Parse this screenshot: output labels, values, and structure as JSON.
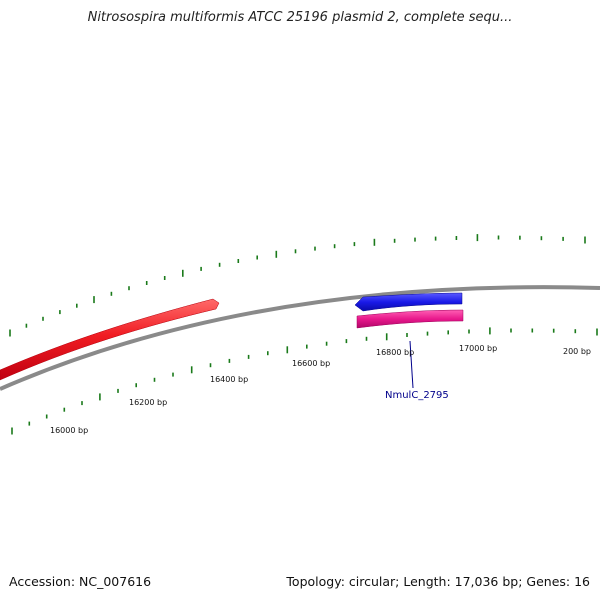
{
  "title": "Nitrosospira multiformis ATCC 25196 plasmid 2, complete sequ...",
  "footer": {
    "accession": "Accession: NC_007616",
    "summary": "Topology: circular; Length: 17,036 bp; Genes: 16"
  },
  "map": {
    "backbone_color": "#8a8a8a",
    "tick_color": "#1a7a1a",
    "position_labels": [
      {
        "name": "tick-label-16000",
        "text": "16000 bp"
      },
      {
        "name": "tick-label-16200",
        "text": "16200 bp"
      },
      {
        "name": "tick-label-16400",
        "text": "16400 bp"
      },
      {
        "name": "tick-label-16600",
        "text": "16600 bp"
      },
      {
        "name": "tick-label-16800",
        "text": "16800 bp"
      },
      {
        "name": "tick-label-17000",
        "text": "17000 bp"
      },
      {
        "name": "tick-label-200",
        "text": "200 bp"
      }
    ],
    "features": [
      {
        "name": "gene-arrow-red",
        "color": "#e8232a",
        "strand": "forward"
      },
      {
        "name": "gene-arrow-blue",
        "color": "#1c1cde",
        "strand": "reverse"
      },
      {
        "name": "gene-bar-magenta",
        "color": "#e01a8a",
        "strand": "forward"
      }
    ],
    "gene_label": "NmulC_2795"
  }
}
